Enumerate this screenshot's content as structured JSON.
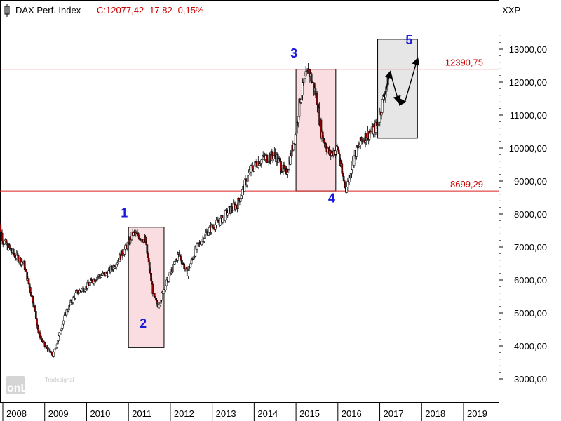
{
  "header": {
    "instrument": "DAX Perf. Index",
    "quote": "C:12077,42 -17,82 -0,15%",
    "currency": "XXP"
  },
  "watermark": {
    "brand": "onLine",
    "sub": "Tradesignal"
  },
  "colors": {
    "candle_up": "#ffffff",
    "candle_down": "#990000",
    "level_line": "#dd2222",
    "wave_label": "#1a1adc",
    "box_orange": "#f7dcb4",
    "box_pink": "#f9dde0",
    "box_gray": "#e6e6e6"
  },
  "chart_data": {
    "type": "candlestick",
    "title": "DAX Perf. Index",
    "ylim": [
      2500,
      14100
    ],
    "y_ticks": [
      "3000,00",
      "4000,00",
      "5000,00",
      "6000,00",
      "7000,00",
      "8000,00",
      "9000,00",
      "10000,00",
      "11000,00",
      "12000,00",
      "13000,00"
    ],
    "x_ticks": [
      "2008",
      "2009",
      "2010",
      "2011",
      "2012",
      "2013",
      "2014",
      "2015",
      "2016",
      "2017",
      "2018",
      "2019"
    ],
    "levels": [
      {
        "label": "12390,75",
        "value": 12390.75
      },
      {
        "label": "8699,29",
        "value": 8699.29
      }
    ],
    "series": [
      {
        "x": [
          2007.85,
          2008.0,
          2008.25,
          2008.5,
          2008.75,
          2008.85,
          2009.0,
          2009.2,
          2009.5,
          2009.75,
          2010.0,
          2010.25,
          2010.5,
          2010.75,
          2011.0,
          2011.1,
          2011.3,
          2011.4,
          2011.6,
          2011.7,
          2011.9,
          2012.2,
          2012.4,
          2012.6,
          2012.9,
          2013.2,
          2013.4,
          2013.6,
          2013.9,
          2014.1,
          2014.3,
          2014.5,
          2014.75,
          2014.9,
          2015.0,
          2015.1,
          2015.2,
          2015.3,
          2015.5,
          2015.6,
          2015.8,
          2016.0,
          2016.1,
          2016.2,
          2016.4,
          2016.6,
          2016.8,
          2016.95,
          2017.1,
          2017.2
        ],
        "values": [
          8100,
          7200,
          6800,
          6500,
          5200,
          4400,
          4000,
          3700,
          5000,
          5600,
          5800,
          6100,
          6200,
          6600,
          7100,
          7400,
          7300,
          7200,
          5500,
          5200,
          5900,
          6800,
          6200,
          6900,
          7500,
          7800,
          8100,
          8300,
          9300,
          9600,
          9700,
          9800,
          9200,
          9900,
          10500,
          11500,
          12000,
          12390,
          11500,
          10500,
          9800,
          10000,
          9200,
          8750,
          9800,
          10300,
          10500,
          10700,
          11600,
          12077
        ]
      }
    ],
    "wave_labels": [
      {
        "text": "1",
        "x": 2010.9,
        "y": 7900
      },
      {
        "text": "2",
        "x": 2011.35,
        "y": 4550
      },
      {
        "text": "3",
        "x": 2014.95,
        "y": 12750
      },
      {
        "text": "4",
        "x": 2015.85,
        "y": 8350
      },
      {
        "text": "5",
        "x": 2017.7,
        "y": 13150
      }
    ],
    "boxes": [
      {
        "kind": "orange",
        "x0": 2011.0,
        "x1": 2011.4,
        "y0": 5000,
        "y1": 7600
      },
      {
        "kind": "pink",
        "x0": 2011.0,
        "x1": 2011.85,
        "y0": 3950,
        "y1": 7600
      },
      {
        "kind": "pink",
        "x0": 2015.0,
        "x1": 2015.95,
        "y0": 8699.29,
        "y1": 12390.75
      },
      {
        "kind": "gray",
        "x0": 2016.95,
        "x1": 2017.9,
        "y0": 10300,
        "y1": 13300
      }
    ],
    "projection": [
      {
        "x": 2017.1,
        "y": 11500
      },
      {
        "x": 2017.25,
        "y": 12300
      },
      {
        "x": 2017.45,
        "y": 11400
      },
      {
        "x": 2017.6,
        "y": 11400
      },
      {
        "x": 2017.9,
        "y": 12700
      }
    ],
    "grid": false
  }
}
